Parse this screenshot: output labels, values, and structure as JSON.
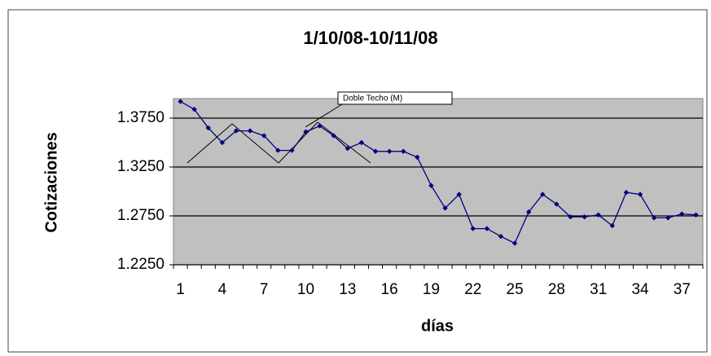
{
  "chart_data": {
    "type": "line",
    "title": "1/10/08-10/11/08",
    "x_label": "días",
    "y_label": "Cotizaciones",
    "annotation": "Doble Techo (M)",
    "categories": [
      "1",
      null,
      null,
      "4",
      null,
      null,
      "7",
      null,
      null,
      "10",
      null,
      null,
      "13",
      null,
      null,
      "16",
      null,
      null,
      "19",
      null,
      null,
      "22",
      null,
      null,
      "25",
      null,
      null,
      "28",
      null,
      null,
      "31",
      null,
      null,
      "34",
      null,
      null,
      "37",
      null
    ],
    "series": [
      {
        "name": "Cotizaciones",
        "color": "#000080",
        "values": [
          1.392,
          1.384,
          1.365,
          1.35,
          1.362,
          1.362,
          1.357,
          1.342,
          1.342,
          1.361,
          1.367,
          1.357,
          1.344,
          1.35,
          1.341,
          1.341,
          1.341,
          1.335,
          1.306,
          1.283,
          1.297,
          1.262,
          1.262,
          1.254,
          1.247,
          1.279,
          1.297,
          1.287,
          1.274,
          1.274,
          1.276,
          1.265,
          1.299,
          1.297,
          1.273,
          1.273,
          1.277,
          1.276
        ]
      }
    ],
    "ylim": [
      1.225,
      1.395
    ],
    "yticks": [
      {
        "value": 1.225,
        "label": "1.2250"
      },
      {
        "value": 1.275,
        "label": "1.2750"
      },
      {
        "value": 1.325,
        "label": "1.3250"
      },
      {
        "value": 1.375,
        "label": "1.3750"
      }
    ],
    "grid": true,
    "plot_background": "#c0c0c0"
  }
}
